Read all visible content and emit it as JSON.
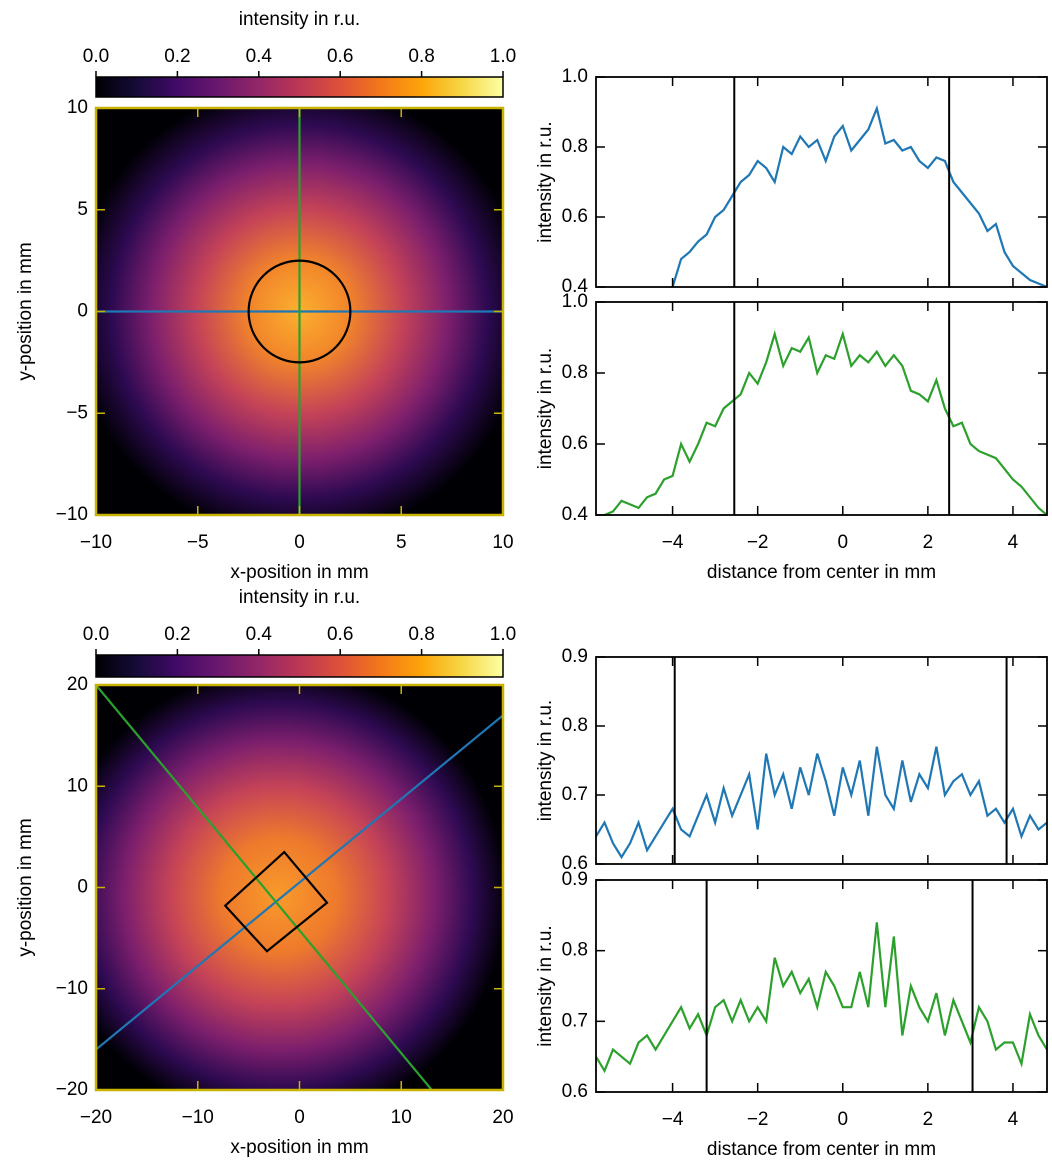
{
  "chart_data": [
    {
      "type": "heatmap",
      "colormap": "inferno",
      "colorbar": {
        "label": "intensity in r.u.",
        "lim": [
          0,
          1
        ],
        "ticks": [
          {
            "value": 0,
            "label": "0.0"
          },
          0.2,
          0.4,
          0.6,
          0.8,
          {
            "value": 1,
            "label": "1.0"
          }
        ]
      },
      "xlabel": "x-position in mm",
      "ylabel": "y-position in mm",
      "xlim": [
        -10,
        10
      ],
      "ylim": [
        -10,
        10
      ],
      "xticks": [
        {
          "value": -10,
          "label": "−10"
        },
        {
          "value": -5,
          "label": "−5"
        },
        0,
        5,
        10
      ],
      "yticks": [
        {
          "value": -10,
          "label": "−10"
        },
        {
          "value": -5,
          "label": "−5"
        },
        0,
        5,
        10
      ],
      "frame_color": "#c8b400",
      "series": [
        {
          "color": "#1f77b4",
          "x": [
            -10,
            10
          ],
          "y": [
            0,
            0
          ]
        },
        {
          "color": "#2ca02c",
          "x": [
            0,
            0
          ],
          "y": [
            -10,
            10
          ]
        }
      ],
      "circles": [
        {
          "color": "#000000",
          "cx": 0,
          "cy": 0,
          "r": 2.5
        }
      ]
    },
    {
      "type": "line",
      "ylabel": "intensity in r.u.",
      "xtick_labels": false,
      "xlim": [
        -5.8,
        4.8
      ],
      "ylim": [
        0.4,
        1.0
      ],
      "xticks": [
        {
          "value": -4,
          "label": "−4"
        },
        {
          "value": -2,
          "label": "−2"
        },
        0,
        2,
        4
      ],
      "yticks": [
        0.4,
        0.6,
        0.8,
        {
          "value": 1,
          "label": "1.0"
        }
      ],
      "vlines": [
        -2.55,
        2.5
      ],
      "series": [
        {
          "color": "#1f77b4",
          "x": [
            -4.0,
            -3.8,
            -3.6,
            -3.4,
            -3.2,
            -3.0,
            -2.8,
            -2.6,
            -2.4,
            -2.2,
            -2.0,
            -1.8,
            -1.6,
            -1.4,
            -1.2,
            -1.0,
            -0.8,
            -0.6,
            -0.4,
            -0.2,
            0.0,
            0.2,
            0.4,
            0.6,
            0.8,
            1.0,
            1.2,
            1.4,
            1.6,
            1.8,
            2.0,
            2.2,
            2.4,
            2.6,
            2.8,
            3.0,
            3.2,
            3.4,
            3.6,
            3.8,
            4.0,
            4.2,
            4.4,
            4.6,
            4.8
          ],
          "values": [
            0.4,
            0.48,
            0.5,
            0.53,
            0.55,
            0.6,
            0.62,
            0.66,
            0.7,
            0.72,
            0.76,
            0.74,
            0.7,
            0.8,
            0.78,
            0.83,
            0.8,
            0.82,
            0.76,
            0.83,
            0.86,
            0.79,
            0.82,
            0.85,
            0.91,
            0.81,
            0.82,
            0.79,
            0.8,
            0.76,
            0.74,
            0.77,
            0.76,
            0.7,
            0.67,
            0.64,
            0.61,
            0.56,
            0.58,
            0.5,
            0.46,
            0.44,
            0.42,
            0.41,
            0.4
          ]
        }
      ]
    },
    {
      "type": "line",
      "ylabel": "intensity in r.u.",
      "xlabel": "distance from center in mm",
      "xlim": [
        -5.8,
        4.8
      ],
      "ylim": [
        0.4,
        1.0
      ],
      "xticks": [
        {
          "value": -4,
          "label": "−4"
        },
        {
          "value": -2,
          "label": "−2"
        },
        0,
        2,
        4
      ],
      "yticks": [
        0.4,
        0.6,
        0.8,
        {
          "value": 1,
          "label": "1.0"
        }
      ],
      "vlines": [
        -2.55,
        2.5
      ],
      "series": [
        {
          "color": "#2ca02c",
          "x": [
            -5.6,
            -5.4,
            -5.2,
            -5.0,
            -4.8,
            -4.6,
            -4.4,
            -4.2,
            -4.0,
            -3.8,
            -3.6,
            -3.4,
            -3.2,
            -3.0,
            -2.8,
            -2.6,
            -2.4,
            -2.2,
            -2.0,
            -1.8,
            -1.6,
            -1.4,
            -1.2,
            -1.0,
            -0.8,
            -0.6,
            -0.4,
            -0.2,
            0.0,
            0.2,
            0.4,
            0.6,
            0.8,
            1.0,
            1.2,
            1.4,
            1.6,
            1.8,
            2.0,
            2.2,
            2.4,
            2.6,
            2.8,
            3.0,
            3.2,
            3.4,
            3.6,
            3.8,
            4.0,
            4.2,
            4.4,
            4.6,
            4.8
          ],
          "values": [
            0.4,
            0.41,
            0.44,
            0.43,
            0.42,
            0.45,
            0.46,
            0.5,
            0.51,
            0.6,
            0.55,
            0.6,
            0.66,
            0.65,
            0.7,
            0.72,
            0.74,
            0.8,
            0.77,
            0.83,
            0.91,
            0.82,
            0.87,
            0.86,
            0.9,
            0.8,
            0.85,
            0.84,
            0.91,
            0.82,
            0.85,
            0.83,
            0.86,
            0.82,
            0.85,
            0.82,
            0.75,
            0.74,
            0.72,
            0.78,
            0.7,
            0.65,
            0.66,
            0.6,
            0.58,
            0.57,
            0.56,
            0.53,
            0.5,
            0.48,
            0.45,
            0.42,
            0.4
          ]
        }
      ]
    },
    {
      "type": "heatmap",
      "colormap": "inferno",
      "colorbar": {
        "label": "intensity in r.u.",
        "lim": [
          0,
          1
        ],
        "ticks": [
          {
            "value": 0,
            "label": "0.0"
          },
          0.2,
          0.4,
          0.6,
          0.8,
          {
            "value": 1,
            "label": "1.0"
          }
        ]
      },
      "xlabel": "x-position in mm",
      "ylabel": "y-position in mm",
      "xlim": [
        -20,
        20
      ],
      "ylim": [
        -20,
        20
      ],
      "xticks": [
        {
          "value": -20,
          "label": "−20"
        },
        {
          "value": -10,
          "label": "−10"
        },
        0,
        10,
        20
      ],
      "yticks": [
        {
          "value": -20,
          "label": "−20"
        },
        {
          "value": -10,
          "label": "−10"
        },
        0,
        10,
        20
      ],
      "frame_color": "#c8b400",
      "series": [
        {
          "color": "#1f77b4",
          "x": [
            -20,
            20
          ],
          "y": [
            -16,
            17
          ]
        },
        {
          "color": "#2ca02c",
          "x": [
            -20,
            13
          ],
          "y": [
            20,
            -20
          ]
        },
        {
          "color": "#000000",
          "closed": true,
          "x": [
            -1.5,
            2.7,
            -3.2,
            -7.3
          ],
          "y": [
            3.5,
            -1.5,
            -6.3,
            -1.8
          ]
        }
      ]
    },
    {
      "type": "line",
      "ylabel": "intensity in r.u.",
      "xtick_labels": false,
      "xlim": [
        -5.8,
        4.8
      ],
      "ylim": [
        0.6,
        0.9
      ],
      "xticks": [
        {
          "value": -4,
          "label": "−4"
        },
        {
          "value": -2,
          "label": "−2"
        },
        0,
        2,
        4
      ],
      "yticks": [
        0.6,
        0.7,
        0.8,
        0.9
      ],
      "vlines": [
        -3.95,
        3.85
      ],
      "series": [
        {
          "color": "#1f77b4",
          "x": [
            -5.8,
            -5.6,
            -5.4,
            -5.2,
            -5.0,
            -4.8,
            -4.6,
            -4.4,
            -4.2,
            -4.0,
            -3.8,
            -3.6,
            -3.4,
            -3.2,
            -3.0,
            -2.8,
            -2.6,
            -2.4,
            -2.2,
            -2.0,
            -1.8,
            -1.6,
            -1.4,
            -1.2,
            -1.0,
            -0.8,
            -0.6,
            -0.4,
            -0.2,
            0.0,
            0.2,
            0.4,
            0.6,
            0.8,
            1.0,
            1.2,
            1.4,
            1.6,
            1.8,
            2.0,
            2.2,
            2.4,
            2.6,
            2.8,
            3.0,
            3.2,
            3.4,
            3.6,
            3.8,
            4.0,
            4.2,
            4.4,
            4.6,
            4.8
          ],
          "values": [
            0.64,
            0.66,
            0.63,
            0.61,
            0.63,
            0.66,
            0.62,
            0.64,
            0.66,
            0.68,
            0.65,
            0.64,
            0.67,
            0.7,
            0.66,
            0.71,
            0.67,
            0.7,
            0.73,
            0.65,
            0.76,
            0.7,
            0.73,
            0.68,
            0.74,
            0.7,
            0.76,
            0.72,
            0.67,
            0.74,
            0.7,
            0.75,
            0.67,
            0.77,
            0.7,
            0.68,
            0.75,
            0.69,
            0.73,
            0.71,
            0.77,
            0.7,
            0.72,
            0.73,
            0.7,
            0.72,
            0.67,
            0.68,
            0.66,
            0.68,
            0.64,
            0.67,
            0.65,
            0.66
          ]
        }
      ]
    },
    {
      "type": "line",
      "ylabel": "intensity in r.u.",
      "xlabel": "distance from center in mm",
      "xlim": [
        -5.8,
        4.8
      ],
      "ylim": [
        0.6,
        0.9
      ],
      "xticks": [
        {
          "value": -4,
          "label": "−4"
        },
        {
          "value": -2,
          "label": "−2"
        },
        0,
        2,
        4
      ],
      "yticks": [
        0.6,
        0.7,
        0.8,
        0.9
      ],
      "vlines": [
        -3.2,
        3.05
      ],
      "series": [
        {
          "color": "#2ca02c",
          "x": [
            -5.8,
            -5.6,
            -5.4,
            -5.2,
            -5.0,
            -4.8,
            -4.6,
            -4.4,
            -4.2,
            -4.0,
            -3.8,
            -3.6,
            -3.4,
            -3.2,
            -3.0,
            -2.8,
            -2.6,
            -2.4,
            -2.2,
            -2.0,
            -1.8,
            -1.6,
            -1.4,
            -1.2,
            -1.0,
            -0.8,
            -0.6,
            -0.4,
            -0.2,
            0.0,
            0.2,
            0.4,
            0.6,
            0.8,
            1.0,
            1.2,
            1.4,
            1.6,
            1.8,
            2.0,
            2.2,
            2.4,
            2.6,
            2.8,
            3.0,
            3.2,
            3.4,
            3.6,
            3.8,
            4.0,
            4.2,
            4.4,
            4.6,
            4.8
          ],
          "values": [
            0.65,
            0.63,
            0.66,
            0.65,
            0.64,
            0.67,
            0.68,
            0.66,
            0.68,
            0.7,
            0.72,
            0.69,
            0.71,
            0.68,
            0.72,
            0.73,
            0.7,
            0.73,
            0.7,
            0.72,
            0.7,
            0.79,
            0.75,
            0.77,
            0.74,
            0.76,
            0.72,
            0.77,
            0.75,
            0.72,
            0.72,
            0.77,
            0.72,
            0.84,
            0.72,
            0.82,
            0.68,
            0.75,
            0.72,
            0.7,
            0.74,
            0.68,
            0.73,
            0.7,
            0.67,
            0.72,
            0.7,
            0.66,
            0.67,
            0.67,
            0.64,
            0.71,
            0.68,
            0.66
          ]
        }
      ]
    }
  ]
}
